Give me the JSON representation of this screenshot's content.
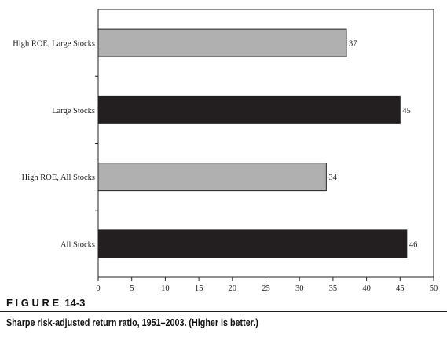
{
  "figure": {
    "tag": "F I G U R E  14-3",
    "caption": "Sharpe risk-adjusted return ratio, 1951–2003. (Higher is better.)"
  },
  "chart_data": {
    "type": "bar",
    "orientation": "horizontal",
    "categories": [
      "High ROE, Large Stocks",
      "Large Stocks",
      "High ROE, All Stocks",
      "All Stocks"
    ],
    "values": [
      37,
      45,
      34,
      46
    ],
    "data_labels": [
      "37",
      "45",
      "34",
      "46"
    ],
    "bar_colors": [
      "#b0b0b0",
      "#231f20",
      "#b0b0b0",
      "#231f20"
    ],
    "xlim": [
      0,
      50
    ],
    "xticks": [
      0,
      5,
      10,
      15,
      20,
      25,
      30,
      35,
      40,
      45,
      50
    ],
    "xtick_labels": [
      "0",
      "5",
      "10",
      "15",
      "20",
      "25",
      "30",
      "35",
      "40",
      "45",
      "50"
    ],
    "grid": false
  }
}
